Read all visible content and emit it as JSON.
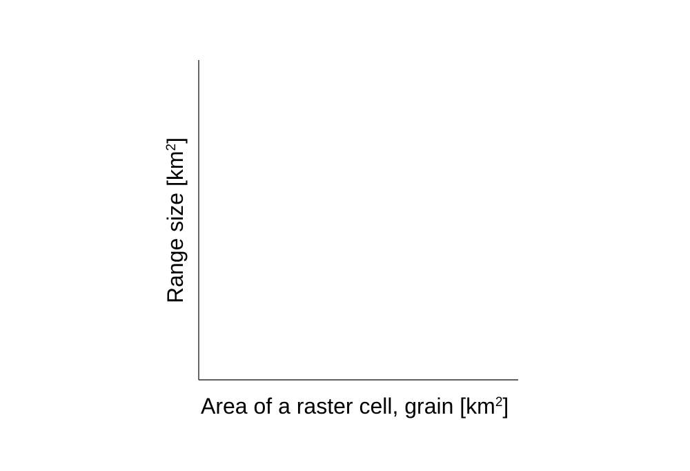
{
  "chart_data": {
    "type": "line",
    "title": "",
    "xlabel": "Area of a raster cell, grain [km",
    "xlabel_sup": "2",
    "xlabel_end": "]",
    "ylabel": "Range size [km",
    "ylabel_sup": "2",
    "ylabel_end": "]",
    "series": [],
    "grid": false,
    "legend": "none"
  }
}
